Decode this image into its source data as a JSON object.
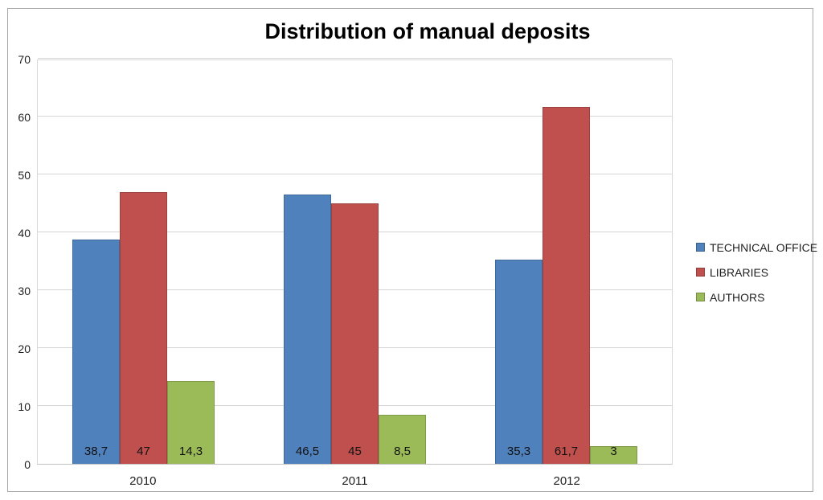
{
  "title": "Distribution of manual deposits",
  "chart_data": {
    "type": "bar",
    "categories": [
      "2010",
      "2011",
      "2012"
    ],
    "series": [
      {
        "name": "TECHNICAL OFFICE",
        "color": "#4F81BD",
        "values": [
          38.7,
          46.5,
          35.3
        ],
        "labels": [
          "38,7",
          "46,5",
          "35,3"
        ]
      },
      {
        "name": "LIBRARIES",
        "color": "#C0504D",
        "values": [
          47,
          45,
          61.7
        ],
        "labels": [
          "47",
          "45",
          "61,7"
        ]
      },
      {
        "name": "AUTHORS",
        "color": "#9BBB59",
        "values": [
          14.3,
          8.5,
          3
        ],
        "labels": [
          "14,3",
          "8,5",
          "3"
        ]
      }
    ],
    "xlabel": "",
    "ylabel": "",
    "ylim": [
      0,
      70
    ],
    "yticks": [
      "0",
      "10",
      "20",
      "30",
      "40",
      "50",
      "60",
      "70"
    ],
    "grid": true,
    "legend_position": "right",
    "data_label_position": "inside-base",
    "decimal_separator": ","
  }
}
